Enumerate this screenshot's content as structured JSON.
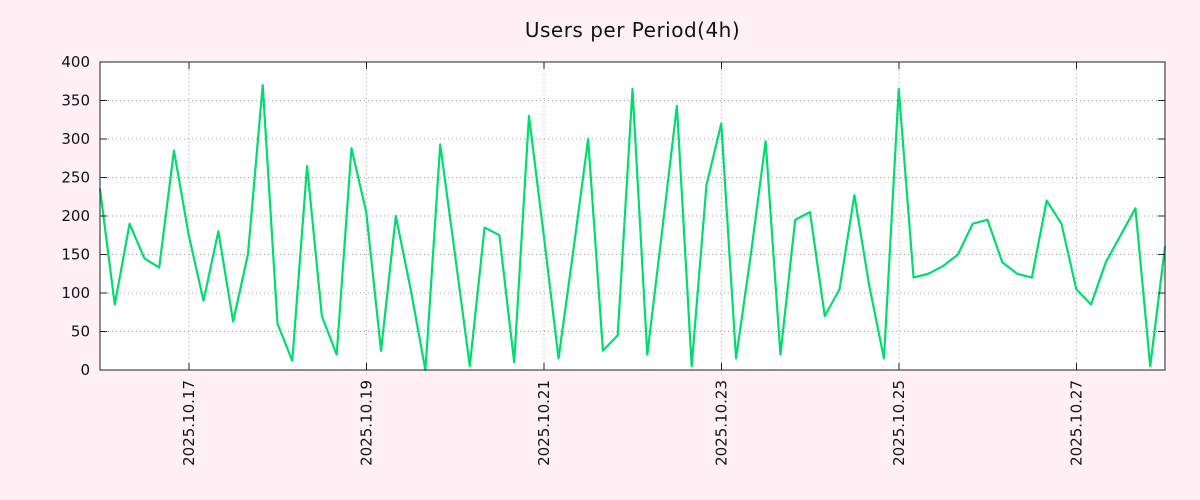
{
  "page": {
    "background_color": "#fff0f5",
    "plot_background": "#ffffff",
    "border_color": "#222222",
    "grid_color": "#a0a0a0",
    "text_color": "#111111"
  },
  "chart_data": {
    "type": "line",
    "title": "Users per Period(4h)",
    "xlabel": "",
    "ylabel": "",
    "ylim": [
      0,
      400
    ],
    "yticks": [
      0,
      50,
      100,
      150,
      200,
      250,
      300,
      350,
      400
    ],
    "x_tick_labels": [
      "2025.10.17",
      "2025.10.19",
      "2025.10.21",
      "2025.10.23",
      "2025.10.25",
      "2025.10.27"
    ],
    "x_tick_indices": [
      6,
      18,
      30,
      42,
      54,
      66
    ],
    "grid": "dotted",
    "legend_position": "none",
    "line_color": "#00dc6e",
    "series": [
      {
        "name": "users",
        "values": [
          235,
          85,
          190,
          145,
          133,
          285,
          175,
          90,
          180,
          63,
          150,
          370,
          60,
          12,
          265,
          70,
          20,
          288,
          205,
          25,
          200,
          105,
          0,
          293,
          150,
          5,
          185,
          175,
          10,
          330,
          175,
          15,
          155,
          300,
          25,
          45,
          365,
          20,
          180,
          343,
          5,
          240,
          320,
          15,
          150,
          297,
          20,
          195,
          205,
          70,
          105,
          227,
          110,
          15,
          365,
          120,
          125,
          135,
          150,
          190,
          195,
          140,
          125,
          120,
          220,
          190,
          105,
          85,
          140,
          175,
          210,
          5,
          160
        ]
      }
    ]
  }
}
